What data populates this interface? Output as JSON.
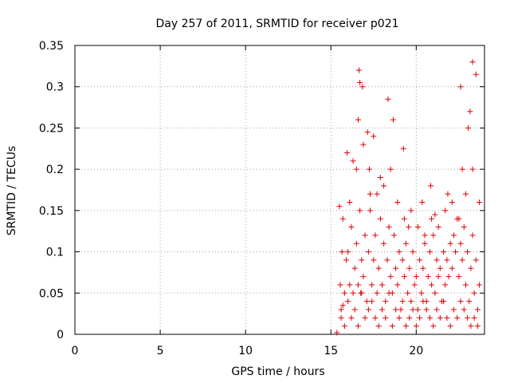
{
  "chart_data": {
    "type": "scatter",
    "title": "Day 257 of 2011, SRMTID for receiver p021",
    "xlabel": "GPS time / hours",
    "ylabel": "SRMTID / TECUs",
    "xlim": [
      0,
      24
    ],
    "ylim": [
      0,
      0.35
    ],
    "xticks": [
      0,
      5,
      10,
      15,
      20
    ],
    "xtick_labels": [
      "0",
      "5",
      "10",
      "15",
      "20"
    ],
    "yticks": [
      0,
      0.05,
      0.1,
      0.15,
      0.2,
      0.25,
      0.3,
      0.35
    ],
    "ytick_labels": [
      "0",
      "0.05",
      "0.1",
      "0.15",
      "0.2",
      "0.25",
      "0.3",
      "0.35"
    ],
    "grid": true,
    "marker": "plus",
    "series_color": "#e00000",
    "series": [
      {
        "name": "SRMTID",
        "x": [
          15.35,
          15.5,
          15.55,
          15.6,
          15.65,
          15.7,
          15.8,
          15.9,
          16.0,
          16.1,
          16.2,
          16.3,
          16.4,
          16.5,
          16.6,
          16.65,
          16.7,
          16.75,
          16.8,
          16.9,
          17.0,
          17.1,
          17.2,
          17.3,
          17.4,
          17.5,
          17.6,
          17.7,
          17.8,
          17.9,
          18.0,
          18.1,
          18.2,
          18.3,
          18.4,
          18.5,
          18.6,
          18.7,
          18.8,
          18.9,
          19.0,
          19.1,
          19.2,
          19.3,
          19.4,
          19.5,
          19.6,
          19.7,
          19.8,
          19.9,
          20.0,
          20.1,
          20.2,
          20.3,
          20.4,
          20.5,
          20.6,
          20.7,
          20.8,
          20.9,
          21.0,
          21.1,
          21.2,
          21.3,
          21.4,
          21.5,
          21.6,
          21.7,
          21.8,
          21.9,
          22.0,
          22.1,
          22.2,
          22.3,
          22.4,
          22.5,
          22.6,
          22.7,
          22.8,
          22.9,
          23.0,
          23.1,
          23.2,
          23.3,
          23.4,
          23.5,
          23.6,
          23.7,
          15.6,
          15.8,
          16.0,
          16.2,
          16.4,
          16.6,
          16.8,
          17.0,
          17.2,
          17.4,
          17.6,
          17.8,
          18.0,
          18.2,
          18.4,
          18.6,
          18.8,
          19.0,
          19.2,
          19.4,
          19.6,
          19.8,
          20.0,
          20.2,
          20.4,
          20.6,
          20.8,
          21.0,
          21.2,
          21.4,
          21.6,
          21.8,
          22.0,
          22.2,
          22.4,
          22.6,
          22.8,
          23.0,
          23.2,
          23.4,
          23.6,
          15.7,
          16.1,
          16.5,
          16.9,
          17.3,
          17.7,
          18.1,
          18.5,
          18.9,
          19.3,
          19.7,
          20.1,
          20.5,
          20.9,
          21.3,
          21.7,
          22.1,
          22.5,
          22.9,
          23.3,
          23.7,
          16.7,
          17.5,
          18.35,
          19.25,
          22.6,
          23.15,
          23.5,
          16.6,
          17.25,
          16.85,
          23.3,
          17.15,
          22.7,
          23.05,
          18.65,
          16.3,
          17.9,
          21.1,
          20.35,
          19.55,
          21.85,
          15.95,
          20.85
        ],
        "y": [
          0.002,
          0.155,
          0.06,
          0.02,
          0.1,
          0.035,
          0.05,
          0.09,
          0.1,
          0.06,
          0.13,
          0.05,
          0.08,
          0.11,
          0.06,
          0.32,
          0.15,
          0.05,
          0.09,
          0.07,
          0.12,
          0.04,
          0.1,
          0.17,
          0.06,
          0.09,
          0.12,
          0.05,
          0.08,
          0.14,
          0.06,
          0.11,
          0.04,
          0.09,
          0.13,
          0.07,
          0.05,
          0.12,
          0.08,
          0.06,
          0.1,
          0.03,
          0.09,
          0.07,
          0.11,
          0.05,
          0.08,
          0.04,
          0.1,
          0.06,
          0.07,
          0.03,
          0.09,
          0.05,
          0.08,
          0.11,
          0.04,
          0.07,
          0.1,
          0.06,
          0.12,
          0.05,
          0.09,
          0.07,
          0.08,
          0.04,
          0.1,
          0.06,
          0.09,
          0.07,
          0.11,
          0.08,
          0.12,
          0.1,
          0.14,
          0.07,
          0.11,
          0.09,
          0.13,
          0.06,
          0.1,
          0.04,
          0.08,
          0.12,
          0.05,
          0.09,
          0.03,
          0.06,
          0.03,
          0.01,
          0.04,
          0.02,
          0.03,
          0.01,
          0.05,
          0.02,
          0.03,
          0.04,
          0.02,
          0.01,
          0.03,
          0.02,
          0.05,
          0.01,
          0.03,
          0.02,
          0.04,
          0.01,
          0.02,
          0.03,
          0.01,
          0.02,
          0.04,
          0.03,
          0.02,
          0.01,
          0.03,
          0.02,
          0.04,
          0.02,
          0.01,
          0.03,
          0.02,
          0.04,
          0.03,
          0.02,
          0.01,
          0.02,
          0.01,
          0.14,
          0.16,
          0.2,
          0.23,
          0.15,
          0.17,
          0.18,
          0.2,
          0.16,
          0.14,
          0.15,
          0.13,
          0.12,
          0.14,
          0.13,
          0.15,
          0.16,
          0.14,
          0.17,
          0.2,
          0.16,
          0.305,
          0.24,
          0.285,
          0.225,
          0.3,
          0.27,
          0.315,
          0.26,
          0.2,
          0.3,
          0.33,
          0.245,
          0.2,
          0.25,
          0.26,
          0.21,
          0.19,
          0.145,
          0.16,
          0.13,
          0.17,
          0.22,
          0.18
        ]
      }
    ]
  }
}
